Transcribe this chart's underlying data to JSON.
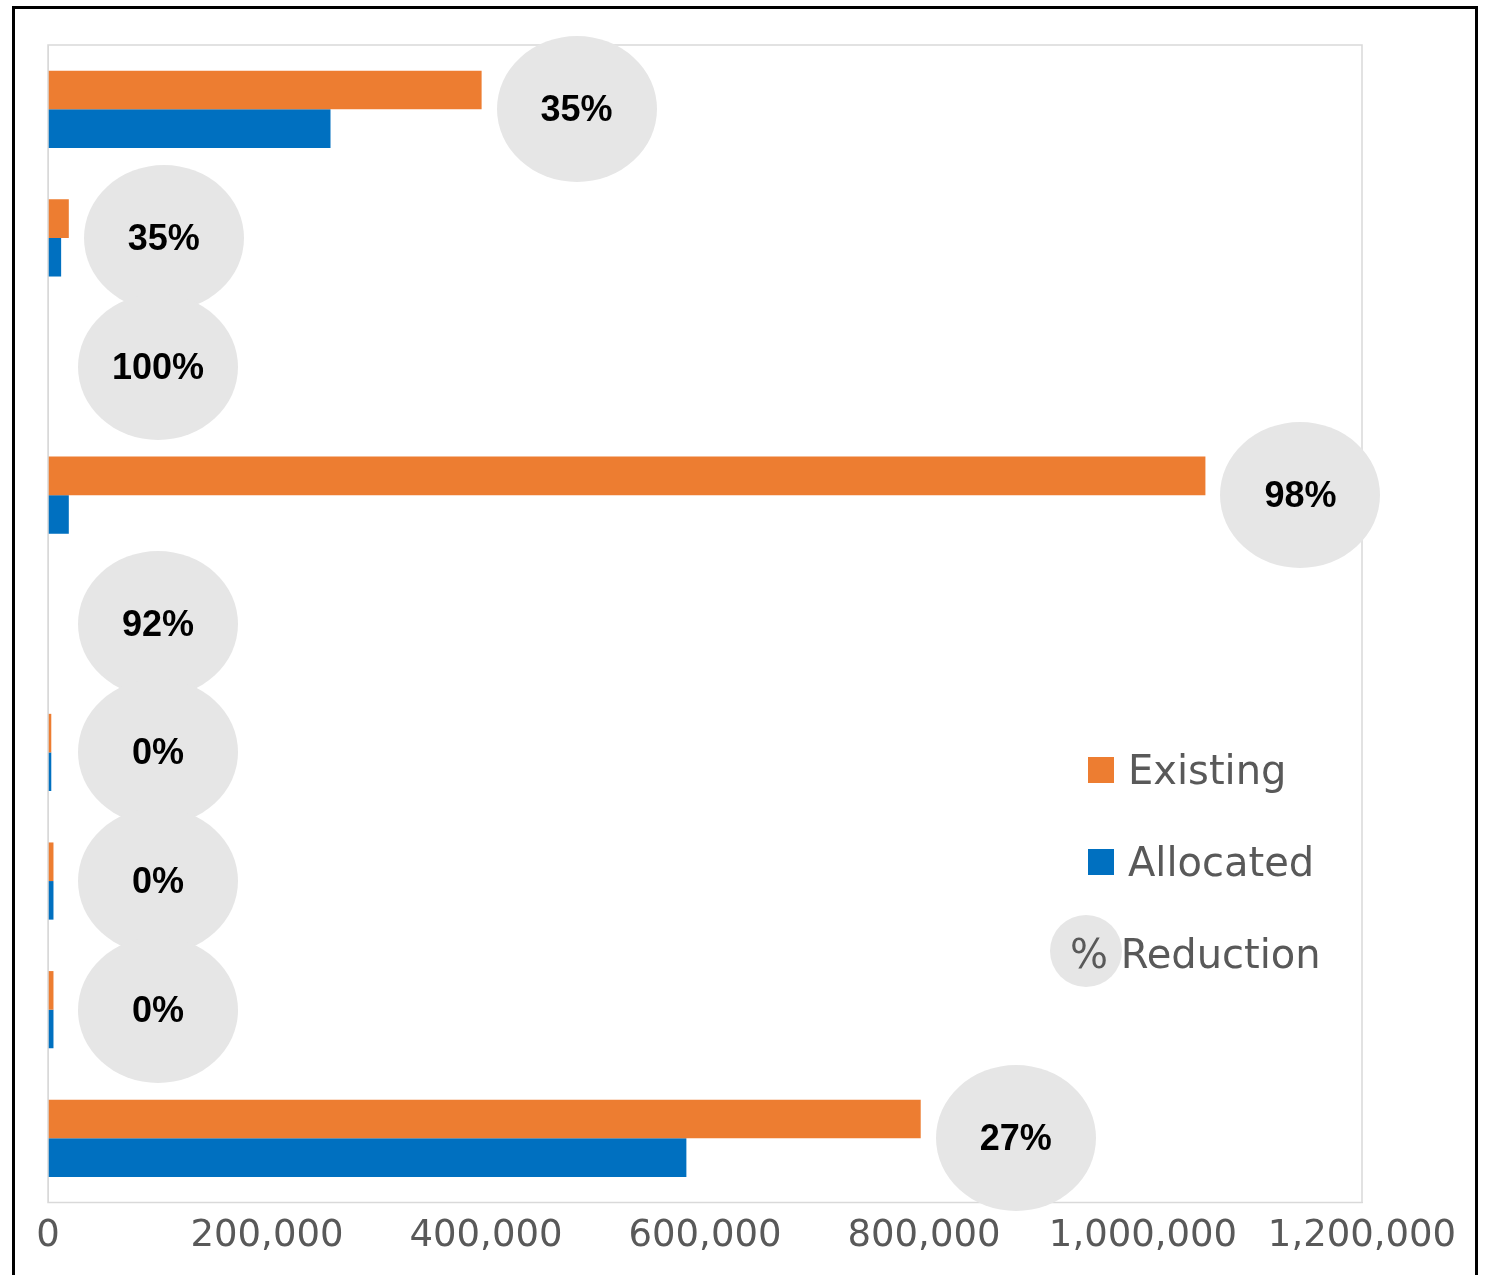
{
  "chart_data": {
    "type": "bar",
    "orientation": "horizontal",
    "categories": [
      null,
      null,
      null,
      null,
      null,
      null,
      null,
      null,
      null
    ],
    "series": [
      {
        "name": "Existing",
        "color": "#ed7d31",
        "values": [
          396000,
          19000,
          null,
          1057000,
          null,
          3000,
          5000,
          5000,
          797000
        ]
      },
      {
        "name": "Allocated",
        "color": "#0070c0",
        "values": [
          258000,
          12000,
          null,
          19000,
          null,
          3000,
          5000,
          5000,
          583000
        ]
      }
    ],
    "annotations": [
      "35%",
      "35%",
      "100%",
      "98%",
      "92%",
      "0%",
      "0%",
      "0%",
      "27%"
    ],
    "legend_title": "% Reduction",
    "xlim": [
      0,
      1200000
    ],
    "xticks": [
      0,
      {
        "value": 200000,
        "label": "200,000"
      },
      {
        "value": 400000,
        "label": "400,000"
      },
      {
        "value": 600000,
        "label": "600,000"
      },
      {
        "value": 800000,
        "label": "800,000"
      },
      {
        "value": 1000000,
        "label": "1,000,000"
      },
      {
        "value": 1200000,
        "label": "1,200,000"
      }
    ],
    "grid": false,
    "legend": "right"
  }
}
